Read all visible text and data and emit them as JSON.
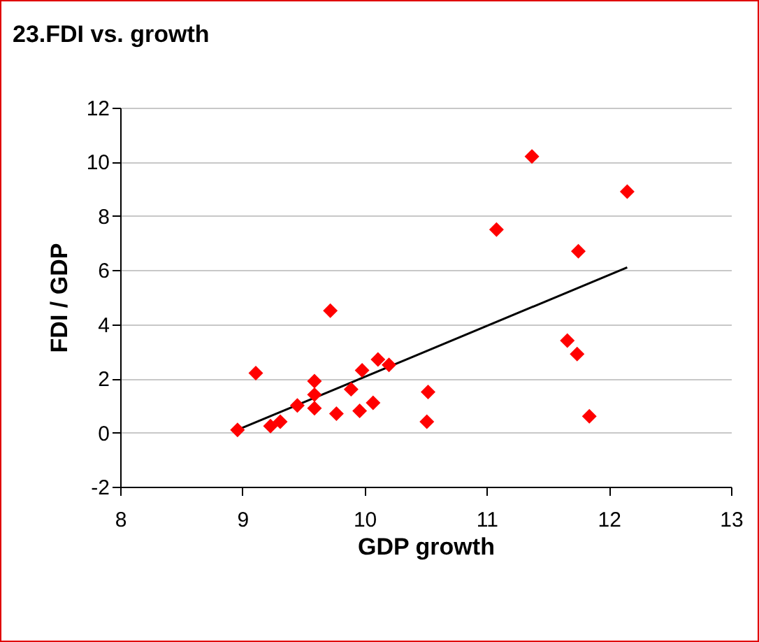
{
  "chart_data": {
    "type": "scatter",
    "title": "23.FDI vs. growth",
    "xlabel": "GDP growth",
    "ylabel": "FDI / GDP",
    "xlim": [
      8,
      13
    ],
    "xticks": [
      8,
      9,
      10,
      11,
      12,
      13
    ],
    "ylim": [
      -2,
      12
    ],
    "yticks": [
      -2,
      0,
      2,
      4,
      6,
      8,
      10,
      12
    ],
    "grid": "y",
    "marker": "diamond",
    "series": [
      {
        "type": "scatter",
        "color": "#ff0000",
        "x": [
          8.96,
          9.11,
          9.23,
          9.31,
          9.45,
          9.59,
          9.59,
          9.59,
          9.72,
          9.77,
          9.89,
          9.96,
          9.98,
          10.07,
          10.11,
          10.2,
          10.51,
          10.52,
          11.08,
          11.37,
          11.66,
          11.74,
          11.75,
          11.84,
          12.15
        ],
        "values": [
          0.1,
          2.2,
          0.24,
          0.4,
          1.0,
          1.9,
          1.4,
          0.9,
          4.5,
          0.7,
          1.6,
          0.8,
          2.3,
          1.1,
          2.7,
          2.5,
          0.4,
          1.5,
          7.5,
          10.2,
          3.4,
          2.9,
          6.7,
          0.6,
          8.9
        ]
      },
      {
        "type": "line",
        "marker": "none",
        "color": "#000000",
        "x": [
          8.96,
          12.15
        ],
        "values": [
          0.1,
          6.1
        ]
      }
    ]
  }
}
